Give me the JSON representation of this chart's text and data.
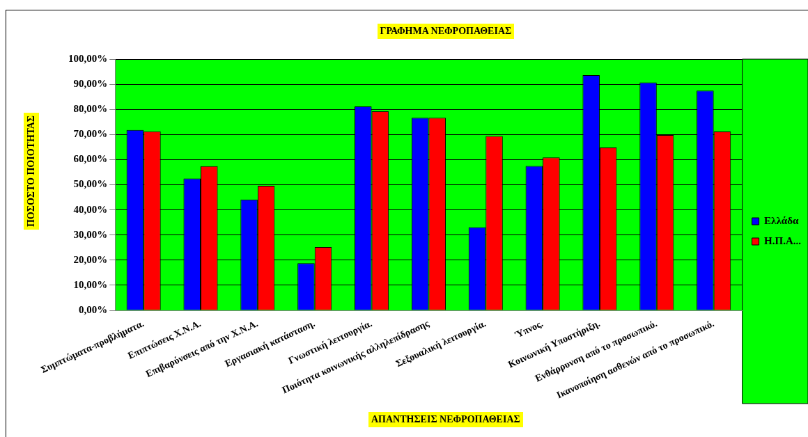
{
  "chart_data": {
    "type": "bar",
    "title": "ΓΡΑΦΗΜΑ ΝΕΦΡΟΠΑΘΕΙΑΣ",
    "xlabel": "ΑΠΑΝΤΗΣΕΙΣ ΝΕΦΡΟΠΑΘΕΙΑΣ",
    "ylabel": "ΠΟΣΟΣΤΟ ΠΟΙΟΤΗΤΑΣ",
    "categories": [
      "Συμπτώματα-προβλήματα.",
      "Επιπτώσεις Χ.Ν.Α.",
      "Επιβαρύνσεις από την Χ.Ν.Α.",
      "Εργασιακή κατάσταση.",
      "Γνωστική λειτουργία.",
      "Ποιότητα κοινωνικής αλληλεπίδρασης",
      "Σεξουαλική λειτουργία.",
      "Ύπνος.",
      "Κοινωνική Υποστήριξη.",
      "Ενθάρρυνση από το προσωπικό.",
      "Ικανοποίηση ασθενών από το προσωπικό."
    ],
    "series": [
      {
        "name": "Ελλάδα",
        "color": "#0000ff",
        "values": [
          71.8,
          52.5,
          44.1,
          18.8,
          81.2,
          76.7,
          33.1,
          57.5,
          93.6,
          90.7,
          87.5
        ]
      },
      {
        "name": "Η.Π.Α...",
        "color": "#ff0000",
        "values": [
          71.3,
          57.4,
          49.6,
          25.2,
          79.2,
          76.7,
          69.4,
          60.9,
          64.8,
          69.8,
          71.2
        ]
      }
    ],
    "ylim": [
      0,
      100
    ],
    "yticks": [
      {
        "value": 0,
        "label": "0,00%"
      },
      {
        "value": 10,
        "label": "10,00%"
      },
      {
        "value": 20,
        "label": "20,00%"
      },
      {
        "value": 30,
        "label": "30,00%"
      },
      {
        "value": 40,
        "label": "40,00%"
      },
      {
        "value": 50,
        "label": "50,00%"
      },
      {
        "value": 60,
        "label": "60,00%"
      },
      {
        "value": 70,
        "label": "70,00%"
      },
      {
        "value": 80,
        "label": "80,00%"
      },
      {
        "value": 90,
        "label": "90,00%"
      },
      {
        "value": 100,
        "label": "100,00%"
      }
    ],
    "grid": "y",
    "legend": "right"
  }
}
